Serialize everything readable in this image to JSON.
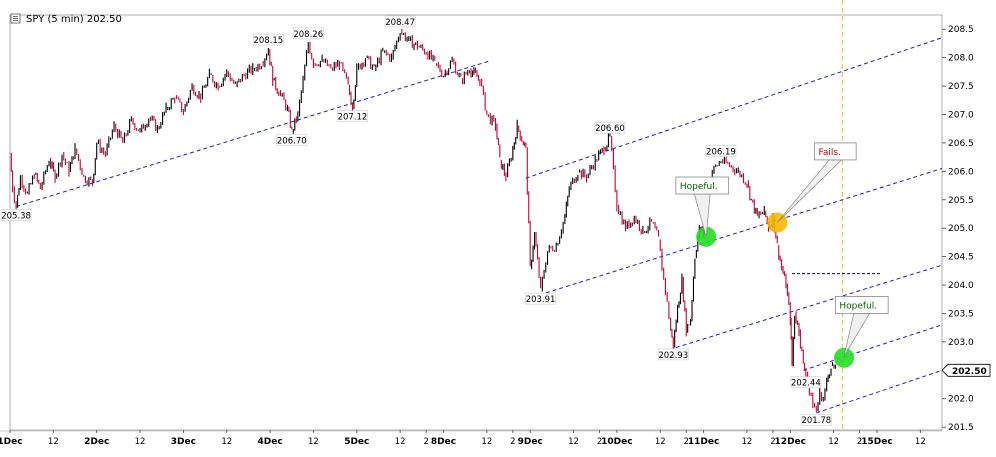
{
  "chart_data": {
    "type": "line",
    "title": "SPY (5 min) 202.50",
    "ylim": [
      201.45,
      208.75
    ],
    "y_ticks": [
      201.5,
      202.0,
      202.5,
      203.0,
      203.5,
      204.0,
      204.5,
      205.0,
      205.5,
      206.0,
      206.5,
      207.0,
      207.5,
      208.0,
      208.5
    ],
    "y_tick_labels": [
      "201.5",
      "202.0",
      "202.5",
      "203.0",
      "203.5",
      "204.0",
      "204.5",
      "205.0",
      "205.5",
      "206.0",
      "206.5",
      "207.0",
      "207.5",
      "208.0",
      "208.5"
    ],
    "current_price": 202.5,
    "current_price_label": "202.50",
    "x_labels": [
      {
        "t": 0.0,
        "text": "1Dec",
        "bold": true
      },
      {
        "t": 0.5,
        "text": "12",
        "bold": false
      },
      {
        "t": 1.0,
        "text": "2Dec",
        "bold": true
      },
      {
        "t": 1.5,
        "text": "12",
        "bold": false
      },
      {
        "t": 2.0,
        "text": "3Dec",
        "bold": true
      },
      {
        "t": 2.5,
        "text": "12",
        "bold": false
      },
      {
        "t": 3.0,
        "text": "4Dec",
        "bold": true
      },
      {
        "t": 3.5,
        "text": "12",
        "bold": false
      },
      {
        "t": 4.0,
        "text": "5Dec",
        "bold": true
      },
      {
        "t": 4.5,
        "text": "12",
        "bold": false
      },
      {
        "t": 4.8,
        "text": "2",
        "bold": false
      },
      {
        "t": 5.0,
        "text": "8Dec",
        "bold": true
      },
      {
        "t": 5.5,
        "text": "12",
        "bold": false
      },
      {
        "t": 5.8,
        "text": "2",
        "bold": false
      },
      {
        "t": 6.0,
        "text": "9Dec",
        "bold": true
      },
      {
        "t": 6.5,
        "text": "12",
        "bold": false
      },
      {
        "t": 6.8,
        "text": "2",
        "bold": false
      },
      {
        "t": 7.0,
        "text": "10Dec",
        "bold": true
      },
      {
        "t": 7.5,
        "text": "12",
        "bold": false
      },
      {
        "t": 7.8,
        "text": "2",
        "bold": false
      },
      {
        "t": 8.0,
        "text": "11Dec",
        "bold": true
      },
      {
        "t": 8.5,
        "text": "12",
        "bold": false
      },
      {
        "t": 8.8,
        "text": "2",
        "bold": false
      },
      {
        "t": 9.0,
        "text": "12Dec",
        "bold": true
      },
      {
        "t": 9.5,
        "text": "12",
        "bold": false
      },
      {
        "t": 9.8,
        "text": "2",
        "bold": false
      },
      {
        "t": 10.0,
        "text": "15Dec",
        "bold": true
      },
      {
        "t": 10.5,
        "text": "12",
        "bold": false
      }
    ],
    "x_range": [
      0.0,
      10.75
    ],
    "price_path": [
      [
        0.0,
        206.3
      ],
      [
        0.03,
        205.7
      ],
      [
        0.07,
        205.38
      ],
      [
        0.12,
        205.9
      ],
      [
        0.2,
        205.6
      ],
      [
        0.28,
        205.95
      ],
      [
        0.35,
        205.7
      ],
      [
        0.45,
        206.2
      ],
      [
        0.52,
        205.9
      ],
      [
        0.6,
        206.3
      ],
      [
        0.68,
        206.0
      ],
      [
        0.75,
        206.4
      ],
      [
        0.85,
        205.9
      ],
      [
        0.95,
        205.8
      ],
      [
        1.0,
        206.5
      ],
      [
        1.1,
        206.3
      ],
      [
        1.2,
        206.8
      ],
      [
        1.3,
        206.5
      ],
      [
        1.4,
        206.9
      ],
      [
        1.5,
        206.7
      ],
      [
        1.6,
        206.95
      ],
      [
        1.7,
        206.75
      ],
      [
        1.8,
        207.1
      ],
      [
        1.9,
        207.3
      ],
      [
        2.0,
        207.05
      ],
      [
        2.1,
        207.5
      ],
      [
        2.2,
        207.3
      ],
      [
        2.3,
        207.7
      ],
      [
        2.4,
        207.5
      ],
      [
        2.5,
        207.75
      ],
      [
        2.6,
        207.5
      ],
      [
        2.7,
        207.7
      ],
      [
        2.8,
        207.8
      ],
      [
        2.9,
        207.9
      ],
      [
        2.98,
        208.15
      ],
      [
        3.03,
        207.6
      ],
      [
        3.1,
        207.4
      ],
      [
        3.2,
        207.1
      ],
      [
        3.25,
        206.7
      ],
      [
        3.32,
        207.0
      ],
      [
        3.38,
        207.6
      ],
      [
        3.44,
        208.26
      ],
      [
        3.5,
        207.9
      ],
      [
        3.6,
        207.95
      ],
      [
        3.7,
        207.8
      ],
      [
        3.8,
        207.9
      ],
      [
        3.9,
        207.5
      ],
      [
        3.95,
        207.12
      ],
      [
        4.0,
        207.8
      ],
      [
        4.1,
        208.0
      ],
      [
        4.2,
        207.8
      ],
      [
        4.3,
        208.1
      ],
      [
        4.4,
        208.0
      ],
      [
        4.5,
        208.47
      ],
      [
        4.6,
        208.3
      ],
      [
        4.7,
        208.2
      ],
      [
        4.8,
        208.1
      ],
      [
        4.9,
        207.9
      ],
      [
        5.0,
        207.7
      ],
      [
        5.1,
        207.95
      ],
      [
        5.2,
        207.6
      ],
      [
        5.3,
        207.8
      ],
      [
        5.42,
        207.6
      ],
      [
        5.5,
        207.0
      ],
      [
        5.6,
        206.8
      ],
      [
        5.65,
        206.2
      ],
      [
        5.72,
        205.9
      ],
      [
        5.8,
        206.4
      ],
      [
        5.85,
        206.8
      ],
      [
        5.92,
        206.5
      ],
      [
        5.95,
        206.4
      ],
      [
        6.0,
        204.3
      ],
      [
        6.05,
        204.9
      ],
      [
        6.12,
        203.91
      ],
      [
        6.2,
        204.6
      ],
      [
        6.3,
        204.7
      ],
      [
        6.4,
        205.2
      ],
      [
        6.45,
        205.7
      ],
      [
        6.55,
        206.0
      ],
      [
        6.65,
        205.9
      ],
      [
        6.75,
        206.2
      ],
      [
        6.85,
        206.4
      ],
      [
        6.92,
        206.6
      ],
      [
        7.0,
        205.4
      ],
      [
        7.1,
        205.0
      ],
      [
        7.2,
        205.2
      ],
      [
        7.3,
        204.95
      ],
      [
        7.4,
        205.1
      ],
      [
        7.48,
        204.8
      ],
      [
        7.52,
        204.3
      ],
      [
        7.58,
        203.7
      ],
      [
        7.62,
        203.2
      ],
      [
        7.65,
        202.93
      ],
      [
        7.7,
        203.6
      ],
      [
        7.75,
        204.1
      ],
      [
        7.8,
        203.2
      ],
      [
        7.85,
        203.4
      ],
      [
        7.9,
        204.5
      ],
      [
        7.95,
        205.0
      ],
      [
        8.0,
        204.9
      ],
      [
        8.05,
        205.5
      ],
      [
        8.1,
        206.0
      ],
      [
        8.2,
        206.19
      ],
      [
        8.3,
        206.1
      ],
      [
        8.4,
        206.0
      ],
      [
        8.5,
        205.8
      ],
      [
        8.55,
        205.5
      ],
      [
        8.62,
        205.2
      ],
      [
        8.7,
        205.3
      ],
      [
        8.75,
        205.0
      ],
      [
        8.8,
        205.2
      ],
      [
        8.85,
        204.7
      ],
      [
        8.9,
        204.3
      ],
      [
        8.95,
        204.0
      ],
      [
        9.0,
        203.4
      ],
      [
        9.02,
        202.6
      ],
      [
        9.05,
        203.5
      ],
      [
        9.1,
        203.2
      ],
      [
        9.15,
        202.6
      ],
      [
        9.18,
        202.44
      ],
      [
        9.22,
        202.1
      ],
      [
        9.26,
        201.9
      ],
      [
        9.3,
        201.78
      ],
      [
        9.34,
        202.1
      ],
      [
        9.38,
        202.0
      ],
      [
        9.42,
        202.3
      ],
      [
        9.47,
        202.6
      ],
      [
        9.52,
        202.5
      ]
    ],
    "channels": [
      {
        "t1": 0.07,
        "p1": 205.38,
        "t2": 5.55,
        "p2": 207.95
      },
      {
        "t1": 5.95,
        "p1": 205.88,
        "t2": 10.75,
        "p2": 208.35
      },
      {
        "t1": 5.95,
        "p1": 203.75,
        "t2": 10.75,
        "p2": 206.05
      },
      {
        "t1": 7.68,
        "p1": 202.9,
        "t2": 10.75,
        "p2": 204.35
      },
      {
        "t1": 9.15,
        "p1": 202.5,
        "t2": 10.75,
        "p2": 203.3
      },
      {
        "t1": 9.3,
        "p1": 201.75,
        "t2": 10.75,
        "p2": 202.5
      }
    ],
    "h_segments": [
      {
        "t1": 9.02,
        "t2": 10.05,
        "p": 204.2
      }
    ],
    "v_line_t": 9.6,
    "value_labels": [
      {
        "t": 0.07,
        "p": 205.38,
        "text": "205.38",
        "pos": "below"
      },
      {
        "t": 2.98,
        "p": 208.15,
        "text": "208.15",
        "pos": "above"
      },
      {
        "t": 3.25,
        "p": 206.7,
        "text": "206.70",
        "pos": "below"
      },
      {
        "t": 3.44,
        "p": 208.26,
        "text": "208.26",
        "pos": "above"
      },
      {
        "t": 3.95,
        "p": 207.12,
        "text": "207.12",
        "pos": "below"
      },
      {
        "t": 4.5,
        "p": 208.47,
        "text": "208.47",
        "pos": "above"
      },
      {
        "t": 6.12,
        "p": 203.91,
        "text": "203.91",
        "pos": "below"
      },
      {
        "t": 6.92,
        "p": 206.6,
        "text": "206.60",
        "pos": "above"
      },
      {
        "t": 7.65,
        "p": 202.93,
        "text": "202.93",
        "pos": "below"
      },
      {
        "t": 8.2,
        "p": 206.19,
        "text": "206.19",
        "pos": "above"
      },
      {
        "t": 9.18,
        "p": 202.44,
        "text": "202.44",
        "pos": "below"
      },
      {
        "t": 9.3,
        "p": 201.78,
        "text": "201.78",
        "pos": "below"
      }
    ],
    "annotations": [
      {
        "text": "Hopeful.",
        "color": "green",
        "box_t": 7.68,
        "box_p": 205.9,
        "target_t": 8.03,
        "target_p": 204.85
      },
      {
        "text": "Fails.",
        "color": "red",
        "box_t": 9.28,
        "box_p": 206.5,
        "target_t": 8.85,
        "target_p": 205.1
      },
      {
        "text": "Hopeful.",
        "color": "green",
        "box_t": 9.52,
        "box_p": 203.8,
        "target_t": 9.62,
        "target_p": 202.75
      }
    ],
    "markers": [
      {
        "t": 8.03,
        "p": 204.85,
        "color": "#22dd22"
      },
      {
        "t": 8.85,
        "p": 205.1,
        "color": "#f5b800"
      },
      {
        "t": 9.62,
        "p": 202.72,
        "color": "#22dd22"
      }
    ],
    "colors": {
      "up": "#000000",
      "down": "#cc0033",
      "channel": "#1f1fcc",
      "vline": "#e6c030",
      "grid": "#e8e8e8"
    }
  }
}
